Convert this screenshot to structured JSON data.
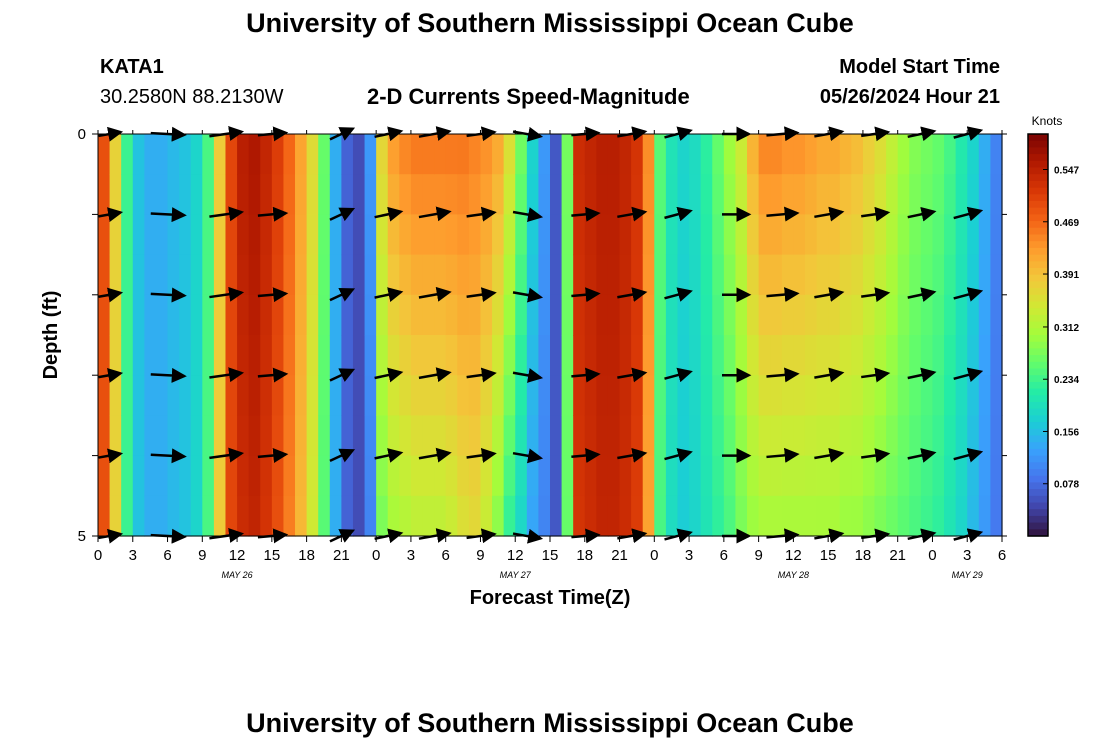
{
  "header": {
    "title": "University of Southern Mississippi Ocean Cube",
    "station": "KATA1",
    "coords": "30.2580N  88.2130W",
    "subtitle": "2-D Currents Speed-Magnitude",
    "model_start_label": "Model Start Time",
    "model_start_value": "05/26/2024 Hour 21"
  },
  "footer": {
    "title": "University of Southern Mississippi Ocean Cube"
  },
  "colors": {
    "arrow": "#000000",
    "colormap": [
      "#30123b",
      "#4145ab",
      "#4675ed",
      "#39a2fc",
      "#1bcfd4",
      "#24eca6",
      "#61fc6c",
      "#a4fc3b",
      "#d1e834",
      "#f3c63a",
      "#fe9b2d",
      "#f36315",
      "#d93806",
      "#b11901",
      "#7a0403"
    ]
  },
  "chart_data": {
    "type": "heatmap",
    "title": "2-D Currents Speed-Magnitude",
    "xlabel": "Forecast Time(Z)",
    "ylabel": "Depth (ft)",
    "x_hours": [
      0,
      78
    ],
    "x_ticks": [
      "0",
      "3",
      "6",
      "9",
      "12",
      "15",
      "18",
      "21",
      "0",
      "3",
      "6",
      "9",
      "12",
      "15",
      "18",
      "21",
      "0",
      "3",
      "6",
      "9",
      "12",
      "15",
      "18",
      "21",
      "0",
      "3",
      "6"
    ],
    "date_labels": [
      {
        "label": "MAY 26",
        "hour": 12
      },
      {
        "label": "MAY 27",
        "hour": 36
      },
      {
        "label": "MAY 28",
        "hour": 60
      },
      {
        "label": "MAY 29",
        "hour": 75
      }
    ],
    "y_ticks": [
      "0",
      "5"
    ],
    "ylim": [
      0,
      5
    ],
    "depth_levels": [
      0,
      1,
      2,
      3,
      4,
      5
    ],
    "colorbar": {
      "label": "Knots",
      "min": 0.0,
      "max": 0.6,
      "ticks": [
        "0.547",
        "0.469",
        "0.391",
        "0.312",
        "0.234",
        "0.156",
        "0.078"
      ],
      "tick_values": [
        0.547,
        0.469,
        0.391,
        0.312,
        0.234,
        0.156,
        0.078
      ]
    },
    "speed_profile": {
      "hours": [
        0,
        1,
        2,
        3,
        4,
        5,
        6,
        7,
        8,
        9,
        10,
        11,
        12,
        13,
        14,
        15,
        16,
        17,
        18,
        19,
        20,
        21,
        22,
        23,
        24,
        25,
        26,
        27,
        28,
        29,
        30,
        31,
        32,
        33,
        34,
        35,
        36,
        37,
        38,
        39,
        40,
        41,
        42,
        43,
        44,
        45,
        46,
        47,
        48,
        49,
        50,
        51,
        52,
        53,
        54,
        55,
        56,
        57,
        58,
        59,
        60,
        61,
        62,
        63,
        64,
        65,
        66,
        67,
        68,
        69,
        70,
        71,
        72,
        73,
        74,
        75,
        76,
        77,
        78
      ],
      "surface": [
        0.49,
        0.37,
        0.23,
        0.16,
        0.14,
        0.14,
        0.15,
        0.16,
        0.18,
        0.24,
        0.38,
        0.5,
        0.55,
        0.56,
        0.54,
        0.51,
        0.47,
        0.42,
        0.36,
        0.26,
        0.14,
        0.07,
        0.05,
        0.12,
        0.37,
        0.43,
        0.45,
        0.46,
        0.46,
        0.46,
        0.46,
        0.46,
        0.45,
        0.44,
        0.42,
        0.36,
        0.27,
        0.18,
        0.12,
        0.06,
        0.27,
        0.53,
        0.54,
        0.55,
        0.55,
        0.54,
        0.52,
        0.44,
        0.25,
        0.2,
        0.18,
        0.19,
        0.22,
        0.26,
        0.3,
        0.34,
        0.41,
        0.45,
        0.45,
        0.44,
        0.44,
        0.43,
        0.42,
        0.42,
        0.41,
        0.4,
        0.38,
        0.36,
        0.33,
        0.3,
        0.28,
        0.27,
        0.26,
        0.24,
        0.21,
        0.18,
        0.14,
        0.1,
        0.06
      ],
      "bottom": [
        0.49,
        0.37,
        0.23,
        0.16,
        0.14,
        0.14,
        0.15,
        0.16,
        0.18,
        0.24,
        0.38,
        0.5,
        0.53,
        0.54,
        0.52,
        0.49,
        0.45,
        0.4,
        0.34,
        0.25,
        0.14,
        0.07,
        0.05,
        0.1,
        0.27,
        0.3,
        0.31,
        0.32,
        0.32,
        0.32,
        0.33,
        0.35,
        0.36,
        0.33,
        0.28,
        0.22,
        0.18,
        0.13,
        0.1,
        0.06,
        0.26,
        0.52,
        0.53,
        0.54,
        0.54,
        0.53,
        0.51,
        0.42,
        0.24,
        0.19,
        0.17,
        0.18,
        0.2,
        0.22,
        0.24,
        0.27,
        0.29,
        0.3,
        0.3,
        0.3,
        0.3,
        0.3,
        0.3,
        0.3,
        0.29,
        0.29,
        0.28,
        0.27,
        0.26,
        0.25,
        0.24,
        0.23,
        0.22,
        0.2,
        0.18,
        0.15,
        0.12,
        0.09,
        0.06
      ]
    },
    "vector_times": [
      1,
      6,
      11,
      15,
      21,
      25,
      29,
      33,
      37,
      42,
      46,
      50,
      55,
      59,
      63,
      67,
      71,
      75
    ],
    "vector_angles_deg": [
      10,
      -3,
      8,
      5,
      25,
      12,
      10,
      8,
      -10,
      5,
      10,
      15,
      0,
      5,
      10,
      8,
      12,
      15
    ],
    "vector_lengths_knots": [
      0.4,
      0.6,
      0.58,
      0.5,
      0.45,
      0.48,
      0.55,
      0.5,
      0.5,
      0.48,
      0.5,
      0.48,
      0.48,
      0.55,
      0.5,
      0.48,
      0.48,
      0.5
    ]
  }
}
